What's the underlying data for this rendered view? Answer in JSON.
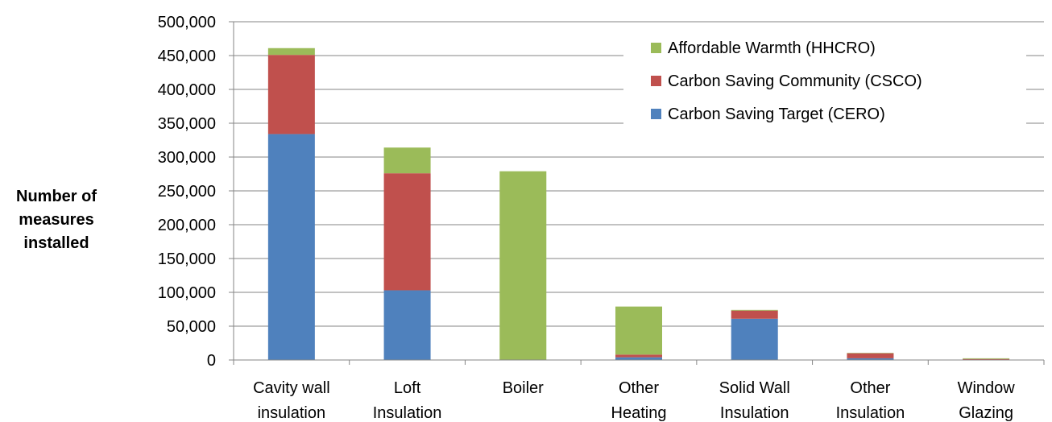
{
  "chart_data": {
    "type": "bar",
    "stacked": true,
    "ylabel": [
      "Number of",
      "measures",
      "installed"
    ],
    "ylim": [
      0,
      500000
    ],
    "yticks": [
      0,
      50000,
      100000,
      150000,
      200000,
      250000,
      300000,
      350000,
      400000,
      450000,
      500000
    ],
    "ytick_labels": [
      "0",
      "50,000",
      "100,000",
      "150,000",
      "200,000",
      "250,000",
      "300,000",
      "350,000",
      "400,000",
      "450,000",
      "500,000"
    ],
    "grid": true,
    "legend_position": "top-right",
    "categories": [
      [
        "Cavity wall",
        "insulation"
      ],
      [
        "Loft",
        "Insulation"
      ],
      [
        "Boiler"
      ],
      [
        "Other",
        "Heating"
      ],
      [
        "Solid Wall",
        "Insulation"
      ],
      [
        "Other",
        "Insulation"
      ],
      [
        "Window",
        "Glazing"
      ]
    ],
    "series": [
      {
        "name": "Carbon Saving Target (CERO)",
        "color": "#4F81BD",
        "values": [
          334000,
          103000,
          0,
          4000,
          61000,
          2500,
          0
        ]
      },
      {
        "name": "Carbon Saving Community (CSCO)",
        "color": "#C0504D",
        "values": [
          117000,
          173000,
          0,
          4000,
          12000,
          7500,
          1500
        ]
      },
      {
        "name": "Affordable Warmth (HHCRO)",
        "color": "#9BBB59",
        "values": [
          10000,
          38000,
          279000,
          71000,
          1000,
          500,
          1000
        ]
      }
    ]
  }
}
